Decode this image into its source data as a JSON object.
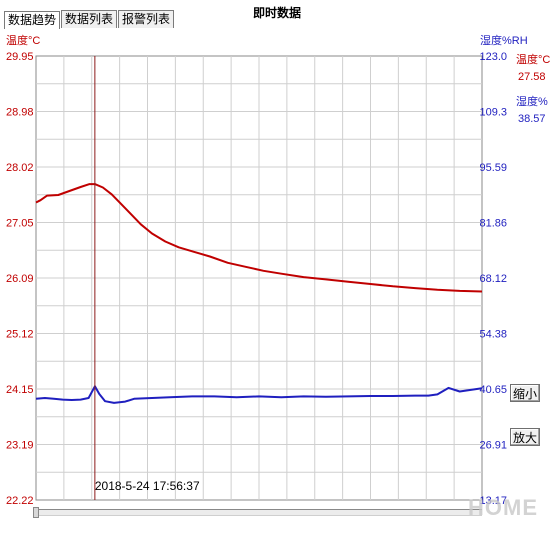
{
  "tabs": [
    {
      "label": "数据趋势",
      "active": true
    },
    {
      "label": "数据列表",
      "active": false
    },
    {
      "label": "报警列表",
      "active": false
    }
  ],
  "window_title": "即时数据",
  "buttons": {
    "zoom_out": "缩小",
    "zoom_in": "放大"
  },
  "watermark": "HOME",
  "chart_data": {
    "type": "line",
    "left_axis_label": "温度°C",
    "right_axis_label": "湿度%RH",
    "left_ticks": [
      "29.95",
      "28.98",
      "28.02",
      "27.05",
      "26.09",
      "25.12",
      "24.15",
      "23.19",
      "22.22"
    ],
    "right_ticks": [
      "123.0",
      "109.3",
      "95.59",
      "81.86",
      "68.12",
      "54.38",
      "40.65",
      "26.91",
      "13.17"
    ],
    "ylim_left": [
      22.22,
      29.95
    ],
    "ylim_right": [
      13.17,
      123.0
    ],
    "cursor": {
      "datetime": "2018-5-24  17:56:37",
      "position": 0.132
    },
    "legend": [
      {
        "name": "温度°C",
        "value": "27.58",
        "color": "#c00000"
      },
      {
        "name": "湿度%",
        "value": "38.57",
        "color": "#1f1fbf"
      }
    ],
    "series": [
      {
        "name": "温度°C",
        "axis": "left",
        "color": "#c00000",
        "points": [
          [
            0.0,
            27.4
          ],
          [
            0.01,
            27.44
          ],
          [
            0.025,
            27.52
          ],
          [
            0.05,
            27.53
          ],
          [
            0.075,
            27.6
          ],
          [
            0.1,
            27.67
          ],
          [
            0.12,
            27.72
          ],
          [
            0.132,
            27.72
          ],
          [
            0.15,
            27.66
          ],
          [
            0.17,
            27.54
          ],
          [
            0.19,
            27.38
          ],
          [
            0.21,
            27.22
          ],
          [
            0.235,
            27.02
          ],
          [
            0.26,
            26.86
          ],
          [
            0.29,
            26.72
          ],
          [
            0.32,
            26.62
          ],
          [
            0.355,
            26.54
          ],
          [
            0.39,
            26.46
          ],
          [
            0.43,
            26.35
          ],
          [
            0.47,
            26.28
          ],
          [
            0.51,
            26.21
          ],
          [
            0.55,
            26.16
          ],
          [
            0.6,
            26.1
          ],
          [
            0.65,
            26.06
          ],
          [
            0.7,
            26.02
          ],
          [
            0.75,
            25.98
          ],
          [
            0.8,
            25.94
          ],
          [
            0.85,
            25.91
          ],
          [
            0.9,
            25.88
          ],
          [
            0.95,
            25.86
          ],
          [
            1.0,
            25.85
          ]
        ]
      },
      {
        "name": "湿度%",
        "axis": "right",
        "color": "#1f1fbf",
        "points": [
          [
            0.0,
            38.2
          ],
          [
            0.02,
            38.4
          ],
          [
            0.04,
            38.2
          ],
          [
            0.06,
            38.0
          ],
          [
            0.08,
            37.9
          ],
          [
            0.1,
            38.0
          ],
          [
            0.118,
            38.4
          ],
          [
            0.132,
            41.3
          ],
          [
            0.142,
            39.4
          ],
          [
            0.155,
            37.6
          ],
          [
            0.175,
            37.2
          ],
          [
            0.2,
            37.5
          ],
          [
            0.22,
            38.2
          ],
          [
            0.26,
            38.4
          ],
          [
            0.3,
            38.6
          ],
          [
            0.35,
            38.8
          ],
          [
            0.4,
            38.8
          ],
          [
            0.45,
            38.6
          ],
          [
            0.5,
            38.8
          ],
          [
            0.55,
            38.6
          ],
          [
            0.6,
            38.8
          ],
          [
            0.65,
            38.7
          ],
          [
            0.7,
            38.8
          ],
          [
            0.75,
            38.9
          ],
          [
            0.8,
            38.9
          ],
          [
            0.85,
            39.0
          ],
          [
            0.88,
            39.0
          ],
          [
            0.9,
            39.3
          ],
          [
            0.925,
            40.9
          ],
          [
            0.95,
            40.0
          ],
          [
            0.975,
            40.4
          ],
          [
            1.0,
            40.8
          ]
        ]
      }
    ]
  }
}
